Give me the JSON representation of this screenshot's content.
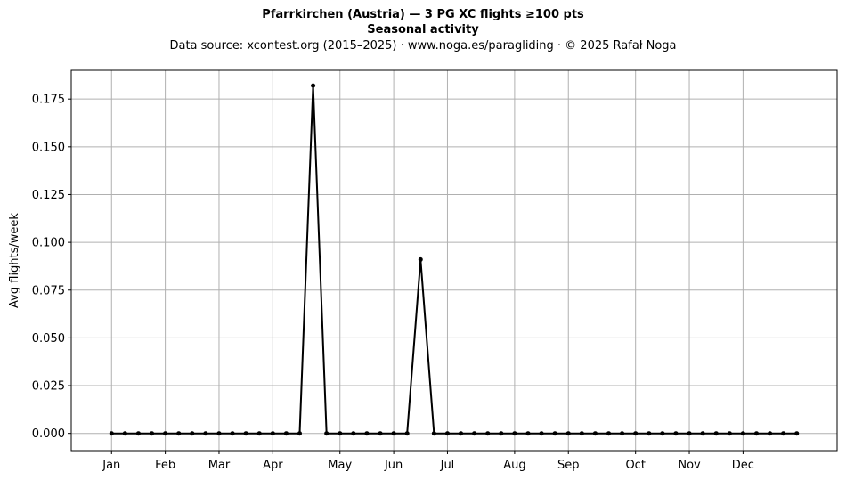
{
  "chart_data": {
    "type": "line",
    "title": "Pfarrkirchen (Austria)  —  3 PG XC flights ≥100 pts",
    "subtitle": "Seasonal activity",
    "source_line": "Data source: xcontest.org (2015–2025)  ·  www.noga.es/paragliding  ·  © 2025 Rafał Noga",
    "xlabel": "",
    "ylabel": "Avg flights/week",
    "x_ticks": [
      {
        "label": "Jan",
        "week": 1
      },
      {
        "label": "Feb",
        "week": 5
      },
      {
        "label": "Mar",
        "week": 9
      },
      {
        "label": "Apr",
        "week": 13
      },
      {
        "label": "May",
        "week": 18
      },
      {
        "label": "Jun",
        "week": 22
      },
      {
        "label": "Jul",
        "week": 26
      },
      {
        "label": "Aug",
        "week": 31
      },
      {
        "label": "Sep",
        "week": 35
      },
      {
        "label": "Oct",
        "week": 40
      },
      {
        "label": "Nov",
        "week": 44
      },
      {
        "label": "Dec",
        "week": 48
      }
    ],
    "y_ticks": [
      "0.000",
      "0.025",
      "0.050",
      "0.075",
      "0.100",
      "0.125",
      "0.150",
      "0.175"
    ],
    "xlim": [
      -2,
      55
    ],
    "ylim": [
      -0.009,
      0.19
    ],
    "grid": true,
    "series_color": "#000000",
    "series": [
      {
        "x": [
          1,
          2,
          3,
          4,
          5,
          6,
          7,
          8,
          9,
          10,
          11,
          12,
          13,
          14,
          15,
          16,
          17,
          18,
          19,
          20,
          21,
          22,
          23,
          24,
          25,
          26,
          27,
          28,
          29,
          30,
          31,
          32,
          33,
          34,
          35,
          36,
          37,
          38,
          39,
          40,
          41,
          42,
          43,
          44,
          45,
          46,
          47,
          48,
          49,
          50,
          51,
          52
        ],
        "values": [
          0,
          0,
          0,
          0,
          0,
          0,
          0,
          0,
          0,
          0,
          0,
          0,
          0,
          0,
          0,
          0.182,
          0,
          0,
          0,
          0,
          0,
          0,
          0,
          0.091,
          0,
          0,
          0,
          0,
          0,
          0,
          0,
          0,
          0,
          0,
          0,
          0,
          0,
          0,
          0,
          0,
          0,
          0,
          0,
          0,
          0,
          0,
          0,
          0,
          0,
          0,
          0,
          0
        ]
      }
    ]
  }
}
